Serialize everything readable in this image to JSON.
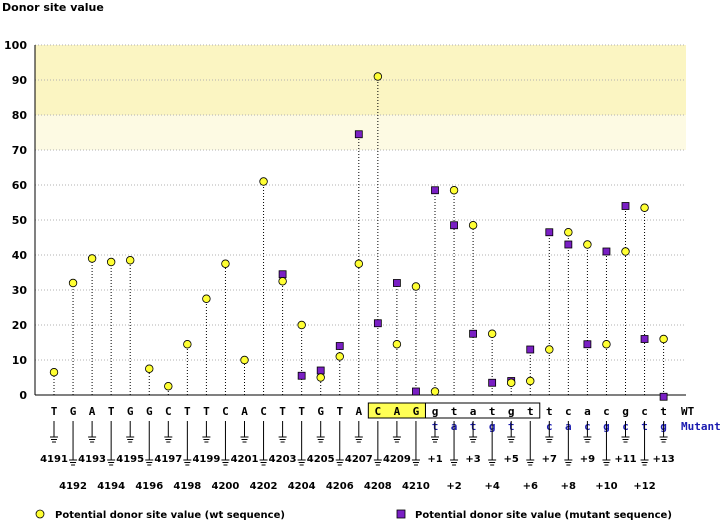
{
  "chart_data": {
    "type": "lollipop",
    "title": "Donor site value",
    "ylabel": "Donor site value",
    "ylim": [
      0,
      100
    ],
    "yticks": [
      "0",
      "10",
      "20",
      "30",
      "40",
      "50",
      "60",
      "70",
      "80",
      "90",
      "100"
    ],
    "bands": [
      {
        "from": 80,
        "to": 100,
        "color": "#fbf5c2",
        "name": "strong-donor-band"
      },
      {
        "from": 70,
        "to": 80,
        "color": "#fdfae3",
        "name": "moderate-donor-band"
      }
    ],
    "row_labels": {
      "wt": "WT",
      "mutant": "Mutant"
    },
    "wt_sequence": [
      "T",
      "G",
      "A",
      "T",
      "G",
      "G",
      "C",
      "T",
      "T",
      "C",
      "A",
      "C",
      "T",
      "T",
      "G",
      "T",
      "A",
      "C",
      "A",
      "G",
      "g",
      "t",
      "a",
      "t",
      "g",
      "t",
      "t",
      "c",
      "a",
      "c",
      "g",
      "c",
      "t"
    ],
    "mutant_letters": [
      {
        "index": 20,
        "letter": "t"
      },
      {
        "index": 21,
        "letter": "a"
      },
      {
        "index": 22,
        "letter": "t"
      },
      {
        "index": 23,
        "letter": "g"
      },
      {
        "index": 24,
        "letter": "t"
      },
      {
        "index": 26,
        "letter": "c"
      },
      {
        "index": 27,
        "letter": "a"
      },
      {
        "index": 28,
        "letter": "c"
      },
      {
        "index": 29,
        "letter": "g"
      },
      {
        "index": 30,
        "letter": "c"
      },
      {
        "index": 31,
        "letter": "t"
      },
      {
        "index": 32,
        "letter": "g"
      }
    ],
    "position_labels": [
      "4191",
      "4192",
      "4193",
      "4194",
      "4195",
      "4196",
      "4197",
      "4198",
      "4199",
      "4200",
      "4201",
      "4202",
      "4203",
      "4204",
      "4205",
      "4206",
      "4207",
      "4208",
      "4209",
      "4210",
      "+1",
      "+2",
      "+3",
      "+4",
      "+5",
      "+6",
      "+7",
      "+8",
      "+9",
      "+10",
      "+11",
      "+12",
      "+13"
    ],
    "highlight": [
      {
        "start": 17,
        "end": 19,
        "fill": "#ffff55",
        "name": "exon-highlight-box"
      },
      {
        "start": 20,
        "end": 25,
        "fill": "none",
        "name": "intron-outline-box"
      }
    ],
    "series": [
      {
        "name": "Potential donor site value (wt sequence)",
        "marker": "circle",
        "color": "#ffff33",
        "points": [
          {
            "index": 0,
            "value": 6.5
          },
          {
            "index": 1,
            "value": 32
          },
          {
            "index": 2,
            "value": 39
          },
          {
            "index": 3,
            "value": 38
          },
          {
            "index": 4,
            "value": 38.5
          },
          {
            "index": 5,
            "value": 7.5
          },
          {
            "index": 6,
            "value": 2.5
          },
          {
            "index": 7,
            "value": 14.5
          },
          {
            "index": 8,
            "value": 27.5
          },
          {
            "index": 9,
            "value": 37.5
          },
          {
            "index": 10,
            "value": 10
          },
          {
            "index": 11,
            "value": 61
          },
          {
            "index": 12,
            "value": 32.5
          },
          {
            "index": 13,
            "value": 20
          },
          {
            "index": 14,
            "value": 5
          },
          {
            "index": 15,
            "value": 11
          },
          {
            "index": 16,
            "value": 37.5
          },
          {
            "index": 17,
            "value": 91
          },
          {
            "index": 18,
            "value": 14.5
          },
          {
            "index": 19,
            "value": 31
          },
          {
            "index": 20,
            "value": 1
          },
          {
            "index": 21,
            "value": 58.5
          },
          {
            "index": 22,
            "value": 48.5
          },
          {
            "index": 23,
            "value": 17.5
          },
          {
            "index": 24,
            "value": 3.5
          },
          {
            "index": 25,
            "value": 4
          },
          {
            "index": 26,
            "value": 13
          },
          {
            "index": 27,
            "value": 46.5
          },
          {
            "index": 28,
            "value": 43
          },
          {
            "index": 29,
            "value": 14.5
          },
          {
            "index": 30,
            "value": 41
          },
          {
            "index": 31,
            "value": 53.5
          },
          {
            "index": 32,
            "value": 16
          }
        ]
      },
      {
        "name": "Potential donor site value (mutant sequence)",
        "marker": "square",
        "color": "#7a1fc4",
        "points": [
          {
            "index": 12,
            "value": 34.5
          },
          {
            "index": 13,
            "value": 5.5
          },
          {
            "index": 14,
            "value": 7
          },
          {
            "index": 15,
            "value": 14
          },
          {
            "index": 16,
            "value": 74.5
          },
          {
            "index": 17,
            "value": 20.5
          },
          {
            "index": 18,
            "value": 32
          },
          {
            "index": 19,
            "value": 1
          },
          {
            "index": 20,
            "value": 58.5
          },
          {
            "index": 21,
            "value": 48.5
          },
          {
            "index": 22,
            "value": 17.5
          },
          {
            "index": 23,
            "value": 3.5
          },
          {
            "index": 24,
            "value": 4
          },
          {
            "index": 25,
            "value": 13
          },
          {
            "index": 26,
            "value": 46.5
          },
          {
            "index": 27,
            "value": 43
          },
          {
            "index": 28,
            "value": 14.5
          },
          {
            "index": 29,
            "value": 41
          },
          {
            "index": 30,
            "value": 54
          },
          {
            "index": 31,
            "value": 16
          },
          {
            "index": 32,
            "value": -0.5
          }
        ]
      }
    ]
  }
}
